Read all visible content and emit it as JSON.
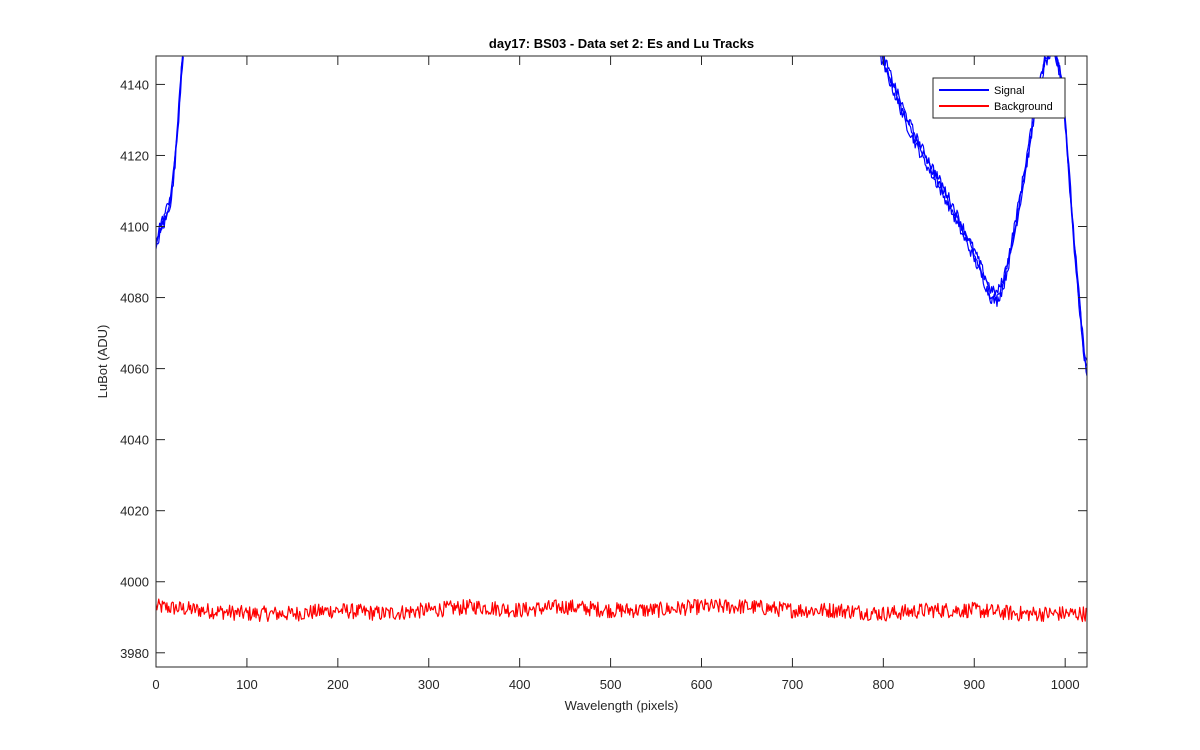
{
  "chart_data": {
    "type": "line",
    "title": "day17: BS03 - Data set 2: Es and Lu Tracks",
    "xlabel": "Wavelength (pixels)",
    "ylabel": "LuBot (ADU)",
    "xlim": [
      0,
      1024
    ],
    "ylim": [
      3976,
      4148
    ],
    "xticks": [
      0,
      100,
      200,
      300,
      400,
      500,
      600,
      700,
      800,
      900,
      1000
    ],
    "yticks": [
      3980,
      4000,
      4020,
      4040,
      4060,
      4080,
      4100,
      4120,
      4140
    ],
    "grid": false,
    "legend_position": "top-right",
    "series": [
      {
        "name": "Signal",
        "color": "#0000ff",
        "segments": [
          {
            "x": [
              0,
              4,
              8,
              12,
              16,
              19,
              22,
              25,
              28,
              30
            ],
            "y": [
              4094,
              4099,
              4101,
              4104,
              4108,
              4113,
              4122,
              4132,
              4144,
              4150
            ]
          },
          {
            "x": [
              795,
              810,
              825,
              840,
              855,
              870,
              885,
              900,
              910,
              918,
              925,
              932,
              940,
              950,
              960,
              970,
              978,
              985,
              990,
              995,
              1000,
              1005,
              1010,
              1015,
              1020,
              1024
            ],
            "y": [
              4150,
              4140,
              4130,
              4122,
              4115,
              4108,
              4100,
              4092,
              4086,
              4081,
              4080,
              4084,
              4093,
              4107,
              4122,
              4138,
              4147,
              4150,
              4148,
              4143,
              4130,
              4112,
              4095,
              4080,
              4066,
              4060
            ]
          }
        ]
      },
      {
        "name": "Background",
        "color": "#ff0000",
        "x": [
          0,
          50,
          100,
          150,
          200,
          250,
          300,
          350,
          400,
          450,
          500,
          550,
          600,
          650,
          700,
          750,
          800,
          850,
          900,
          950,
          1000,
          1024
        ],
        "y": [
          3993,
          3992,
          3991,
          3991,
          3992,
          3991,
          3992,
          3993,
          3992,
          3993,
          3992,
          3992,
          3993,
          3993,
          3992,
          3992,
          3991,
          3992,
          3992,
          3991,
          3991,
          3991
        ]
      }
    ]
  }
}
